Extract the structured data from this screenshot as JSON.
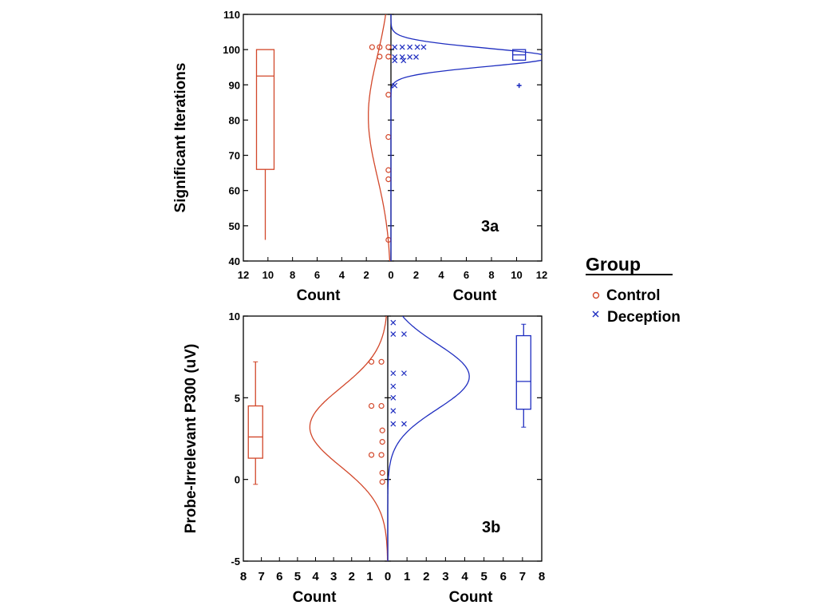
{
  "colors": {
    "control": "#d2472a",
    "deception": "#1f2ec0",
    "axis": "#000000"
  },
  "legend": {
    "title": "Group",
    "entries": [
      {
        "name": "Control",
        "marker": "circle",
        "color": "#d2472a"
      },
      {
        "name": "Deception",
        "marker": "cross",
        "color": "#1f2ec0"
      }
    ]
  },
  "chart_data": [
    {
      "id": "3a",
      "type": "back-to-back histogram with normal curves and box plots",
      "panel_label": "3a",
      "ylabel": "Significant Iterations",
      "ylim": [
        40,
        110
      ],
      "yticks": [
        40,
        50,
        60,
        70,
        80,
        90,
        100,
        110
      ],
      "left_xlabel": "Count",
      "right_xlabel": "Count",
      "left_xticks": [
        "12",
        "10",
        "8",
        "6",
        "4",
        "2",
        "0"
      ],
      "right_xticks": [
        "0",
        "2",
        "4",
        "6",
        "8",
        "10",
        "12"
      ],
      "xmax": 12,
      "series": [
        {
          "name": "Control",
          "side": "left",
          "points": [
            {
              "count": 1.5,
              "y": 100.7
            },
            {
              "count": 0.9,
              "y": 100.7
            },
            {
              "count": 0.2,
              "y": 100.7
            },
            {
              "count": 0.9,
              "y": 98
            },
            {
              "count": 0.2,
              "y": 98
            },
            {
              "count": 0.2,
              "y": 87.2
            },
            {
              "count": 0.2,
              "y": 75.2
            },
            {
              "count": 0.2,
              "y": 65.8
            },
            {
              "count": 0.2,
              "y": 63.2
            },
            {
              "count": 0.2,
              "y": 46
            }
          ],
          "normal_curve": {
            "mean": 81,
            "sd": 17,
            "peak_count": 1.8
          },
          "box": {
            "min": 46,
            "q1": 66,
            "median": 92.5,
            "q3": 100,
            "max": 100,
            "x_count": 10
          }
        },
        {
          "name": "Deception",
          "side": "right",
          "points": [
            {
              "count": 0.3,
              "y": 100.7
            },
            {
              "count": 0.9,
              "y": 100.7
            },
            {
              "count": 1.5,
              "y": 100.7
            },
            {
              "count": 2.1,
              "y": 100.7
            },
            {
              "count": 2.6,
              "y": 100.7
            },
            {
              "count": 0.3,
              "y": 97.9
            },
            {
              "count": 0.9,
              "y": 97.9
            },
            {
              "count": 1.5,
              "y": 97.9
            },
            {
              "count": 2.0,
              "y": 97.9
            },
            {
              "count": 0.3,
              "y": 96.9
            },
            {
              "count": 1.0,
              "y": 96.9
            },
            {
              "count": 0.3,
              "y": 89.8
            }
          ],
          "normal_curve": {
            "mean": 97.8,
            "sd": 2.6,
            "peak_count": 12.6
          },
          "box": {
            "min": 97,
            "q1": 97,
            "median": 98.5,
            "q3": 100,
            "max": 100,
            "x_count": 10.2,
            "outlier": 89.8
          }
        }
      ]
    },
    {
      "id": "3b",
      "type": "back-to-back histogram with normal curves and box plots",
      "panel_label": "3b",
      "ylabel": "Probe-Irrelevant P300 (uV)",
      "ylim": [
        -5,
        10
      ],
      "yticks": [
        -5,
        0,
        5,
        10
      ],
      "left_xlabel": "Count",
      "right_xlabel": "Count",
      "left_xticks": [
        "8",
        "7",
        "6",
        "5",
        "4",
        "3",
        "2",
        "1",
        "0"
      ],
      "right_xticks": [
        "0",
        "1",
        "2",
        "3",
        "4",
        "5",
        "6",
        "7",
        "8"
      ],
      "xmax": 8.5,
      "series": [
        {
          "name": "Control",
          "side": "left",
          "points": [
            {
              "count": 0.9,
              "y": 7.2
            },
            {
              "count": 0.35,
              "y": 7.2
            },
            {
              "count": 0.9,
              "y": 4.5
            },
            {
              "count": 0.35,
              "y": 4.5
            },
            {
              "count": 0.3,
              "y": 3.0
            },
            {
              "count": 0.3,
              "y": 2.3
            },
            {
              "count": 0.9,
              "y": 1.5
            },
            {
              "count": 0.35,
              "y": 1.5
            },
            {
              "count": 0.3,
              "y": 0.4
            },
            {
              "count": 0.3,
              "y": -0.15
            }
          ],
          "normal_curve": {
            "mean": 3.2,
            "sd": 2.4,
            "peak_count": 4.3
          },
          "box": {
            "min": -0.3,
            "q1": 1.3,
            "median": 2.6,
            "q3": 4.5,
            "max": 7.2,
            "x_count": 7.3
          }
        },
        {
          "name": "Deception",
          "side": "right",
          "points": [
            {
              "count": 0.3,
              "y": 9.6
            },
            {
              "count": 0.3,
              "y": 8.9
            },
            {
              "count": 0.9,
              "y": 8.9
            },
            {
              "count": 0.3,
              "y": 6.5
            },
            {
              "count": 0.9,
              "y": 6.5
            },
            {
              "count": 0.3,
              "y": 5.7
            },
            {
              "count": 0.3,
              "y": 5.0
            },
            {
              "count": 0.3,
              "y": 4.2
            },
            {
              "count": 0.3,
              "y": 3.4
            },
            {
              "count": 0.9,
              "y": 3.4
            }
          ],
          "normal_curve": {
            "mean": 6.3,
            "sd": 2.0,
            "peak_count": 4.5
          },
          "box": {
            "min": 3.2,
            "q1": 4.3,
            "median": 6.0,
            "q3": 8.8,
            "max": 9.5,
            "x_count": 7.5
          }
        }
      ]
    }
  ]
}
